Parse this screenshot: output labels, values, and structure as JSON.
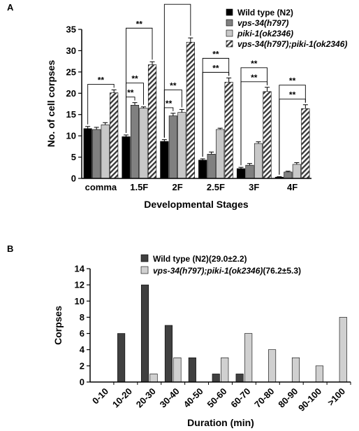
{
  "chart_data": [
    {
      "panel": "A",
      "type": "bar",
      "xlabel": "Developmental Stages",
      "ylabel": "No. of cell corpses",
      "ylim": [
        0,
        35
      ],
      "yticks": [
        "0",
        "5",
        "10",
        "15",
        "20",
        "25",
        "30",
        "35"
      ],
      "categories": [
        "comma",
        "1.5F",
        "2F",
        "2.5F",
        "3F",
        "4F"
      ],
      "legend_position": "top-right",
      "legend": [
        {
          "plain": "Wild type (N2)",
          "italic": "",
          "suffix": ""
        },
        {
          "plain": "",
          "italic": "vps-34(h797)",
          "suffix": ""
        },
        {
          "plain": "",
          "italic": "piki-1(ok2346)",
          "suffix": ""
        },
        {
          "plain": "",
          "italic": "vps-34(h797);piki-1(ok2346)",
          "suffix": ""
        }
      ],
      "series": [
        {
          "values": [
            11.7,
            9.8,
            8.7,
            4.3,
            2.3,
            0.3
          ],
          "errors": [
            0.5,
            0.4,
            0.4,
            0.3,
            0.3,
            0.1
          ],
          "color": "#000000",
          "fill": "solid"
        },
        {
          "values": [
            11.5,
            17.2,
            14.7,
            5.7,
            3.1,
            1.5
          ],
          "errors": [
            0.5,
            0.6,
            0.6,
            0.5,
            0.4,
            0.2
          ],
          "color": "#808080",
          "fill": "solid"
        },
        {
          "values": [
            12.6,
            16.5,
            15.5,
            11.5,
            8.2,
            3.3
          ],
          "errors": [
            0.5,
            0.3,
            0.7,
            0.3,
            0.4,
            0.4
          ],
          "color": "#c8c8c8",
          "fill": "solid"
        },
        {
          "values": [
            20.1,
            26.7,
            32.0,
            22.6,
            20.4,
            16.4
          ],
          "errors": [
            0.7,
            0.7,
            1.0,
            1.0,
            1.0,
            0.9
          ],
          "color": "#ffffff",
          "fill": "hatched"
        }
      ],
      "significance": [
        {
          "category": "comma",
          "from": 0,
          "to": 3,
          "label": "**"
        },
        {
          "category": "1.5F",
          "from": 0,
          "to": 1,
          "label": "**"
        },
        {
          "category": "1.5F",
          "from": 0,
          "to": 2,
          "label": "**"
        },
        {
          "category": "1.5F",
          "from": 0,
          "to": 3,
          "label": "**"
        },
        {
          "category": "2F",
          "from": 0,
          "to": 1,
          "label": "**"
        },
        {
          "category": "2F",
          "from": 0,
          "to": 2,
          "label": "**"
        },
        {
          "category": "2F",
          "from": 0,
          "to": 3,
          "label": "**"
        },
        {
          "category": "2.5F",
          "from": 0,
          "to": 3,
          "label": "**"
        },
        {
          "category": "2.5F",
          "from": 0,
          "to": 3,
          "label": "**"
        },
        {
          "category": "3F",
          "from": 0,
          "to": 3,
          "label": "**"
        },
        {
          "category": "3F",
          "from": 0,
          "to": 3,
          "label": "**"
        },
        {
          "category": "4F",
          "from": 0,
          "to": 3,
          "label": "**"
        },
        {
          "category": "4F",
          "from": 0,
          "to": 3,
          "label": "**"
        }
      ]
    },
    {
      "panel": "B",
      "type": "bar",
      "xlabel": "Duration (min)",
      "ylabel": "Corpses",
      "ylim": [
        0,
        14
      ],
      "yticks": [
        "0",
        "2",
        "4",
        "6",
        "8",
        "10",
        "12",
        "14"
      ],
      "categories": [
        "0-10",
        "10-20",
        "20-30",
        "30-40",
        "40-50",
        "50-60",
        "60-70",
        "70-80",
        "80-90",
        "90-100",
        ">100"
      ],
      "legend_position": "top",
      "legend": [
        {
          "plain": "Wild type (N2)",
          "italic": "",
          "suffix": "(29.0±2.2)"
        },
        {
          "plain": "",
          "italic": "vps-34(h797);piki-1(ok2346)",
          "suffix": "(76.2±5.3)"
        }
      ],
      "series": [
        {
          "values": [
            0,
            6,
            12,
            7,
            3,
            1,
            1,
            0,
            0,
            0,
            0
          ],
          "color": "#404040",
          "fill": "solid"
        },
        {
          "values": [
            0,
            0,
            1,
            3,
            0,
            3,
            6,
            4,
            3,
            2,
            8
          ],
          "color": "#d0d0d0",
          "fill": "solid"
        }
      ]
    }
  ]
}
